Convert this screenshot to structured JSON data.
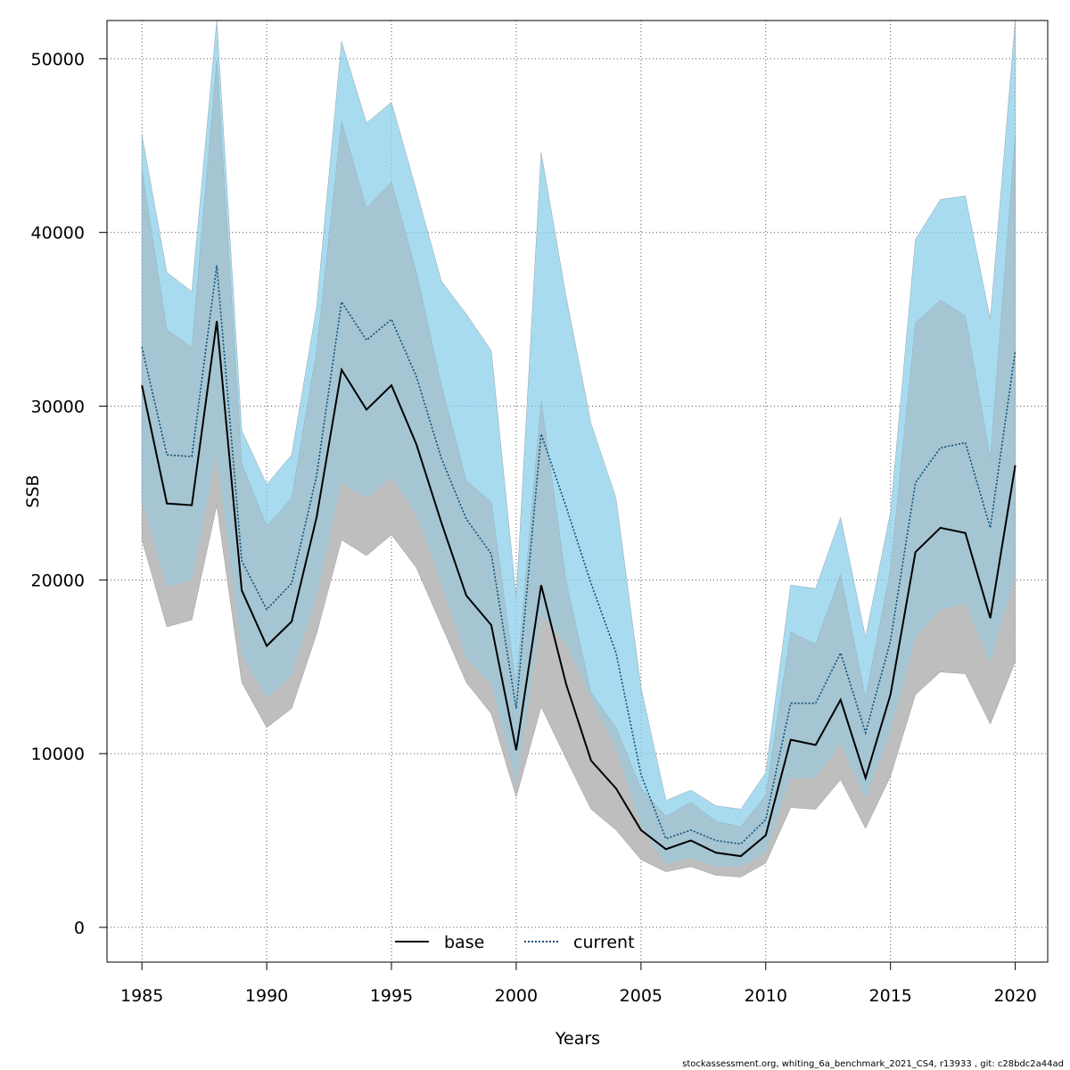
{
  "chart_data": {
    "type": "line",
    "xlabel": "Years",
    "ylabel": "SSB",
    "xlim": [
      1983.6,
      2021.3
    ],
    "ylim": [
      -2000,
      52200
    ],
    "x_ticks": [
      1985,
      1990,
      1995,
      2000,
      2005,
      2010,
      2015,
      2020
    ],
    "y_ticks": [
      0,
      10000,
      20000,
      30000,
      40000,
      50000
    ],
    "grid": true,
    "legend_position": "bottom-center",
    "x": [
      1985,
      1986,
      1987,
      1988,
      1989,
      1990,
      1991,
      1992,
      1993,
      1994,
      1995,
      1996,
      1997,
      1998,
      1999,
      2000,
      2001,
      2002,
      2003,
      2004,
      2005,
      2006,
      2007,
      2008,
      2009,
      2010,
      2011,
      2012,
      2013,
      2014,
      2015,
      2016,
      2017,
      2018,
      2019,
      2020
    ],
    "series": [
      {
        "name": "base",
        "line_style": "solid",
        "color": "#000000",
        "band_color": "#bebebe",
        "values": [
          31200,
          24400,
          24300,
          34900,
          19400,
          16200,
          17600,
          23600,
          32100,
          29800,
          31200,
          27800,
          23300,
          19100,
          17400,
          10200,
          19700,
          14000,
          9600,
          8000,
          5600,
          4500,
          5000,
          4300,
          4100,
          5300,
          10800,
          10500,
          13100,
          8600,
          13400,
          21600,
          23000,
          22700,
          17800,
          26600
        ],
        "lower": [
          22300,
          17300,
          17700,
          24300,
          14100,
          11500,
          12600,
          16900,
          22300,
          21400,
          22600,
          20700,
          17400,
          14100,
          12300,
          7500,
          12700,
          9700,
          6800,
          5600,
          3900,
          3200,
          3500,
          3000,
          2900,
          3700,
          6900,
          6800,
          8500,
          5700,
          8700,
          13400,
          14700,
          14600,
          11700,
          15300
        ],
        "upper": [
          43600,
          34400,
          33400,
          49900,
          26700,
          23100,
          24700,
          33200,
          46400,
          41400,
          42900,
          37700,
          31200,
          25700,
          24500,
          13900,
          30300,
          19900,
          13500,
          11500,
          8000,
          6400,
          7200,
          6100,
          5800,
          7600,
          17000,
          16300,
          20300,
          13200,
          20600,
          34800,
          36100,
          35200,
          27000,
          45600
        ]
      },
      {
        "name": "current",
        "line_style": "dotted",
        "color": "#0b4f7a",
        "band_color": "#87ceeb",
        "values": [
          33400,
          27200,
          27100,
          38100,
          21100,
          18300,
          19800,
          26000,
          36000,
          33800,
          35000,
          31700,
          27000,
          23500,
          21500,
          12600,
          28400,
          24200,
          19800,
          15800,
          8800,
          5100,
          5600,
          5000,
          4800,
          6200,
          12900,
          12900,
          15800,
          11200,
          16500,
          25600,
          27600,
          27900,
          23000,
          33200
        ],
        "lower": [
          24500,
          19600,
          20000,
          27200,
          15700,
          13200,
          14500,
          19000,
          25600,
          24700,
          25900,
          23700,
          19800,
          15500,
          14000,
          8200,
          18000,
          16300,
          13200,
          10300,
          5800,
          3600,
          4000,
          3500,
          3500,
          4300,
          8600,
          8600,
          10600,
          7400,
          11300,
          16700,
          18300,
          18600,
          15300,
          20200
        ],
        "upper": [
          45600,
          37700,
          36600,
          52200,
          28600,
          25500,
          27200,
          35700,
          51000,
          46300,
          47500,
          42400,
          37200,
          35300,
          33200,
          19000,
          44600,
          36300,
          29000,
          24700,
          13800,
          7300,
          7900,
          7000,
          6800,
          8900,
          19700,
          19500,
          23600,
          16700,
          23900,
          39600,
          41900,
          42100,
          35000,
          52200
        ]
      }
    ]
  },
  "footer": "stockassessment.org, whiting_6a_benchmark_2021_CS4, r13933 , git: c28bdc2a44ad"
}
